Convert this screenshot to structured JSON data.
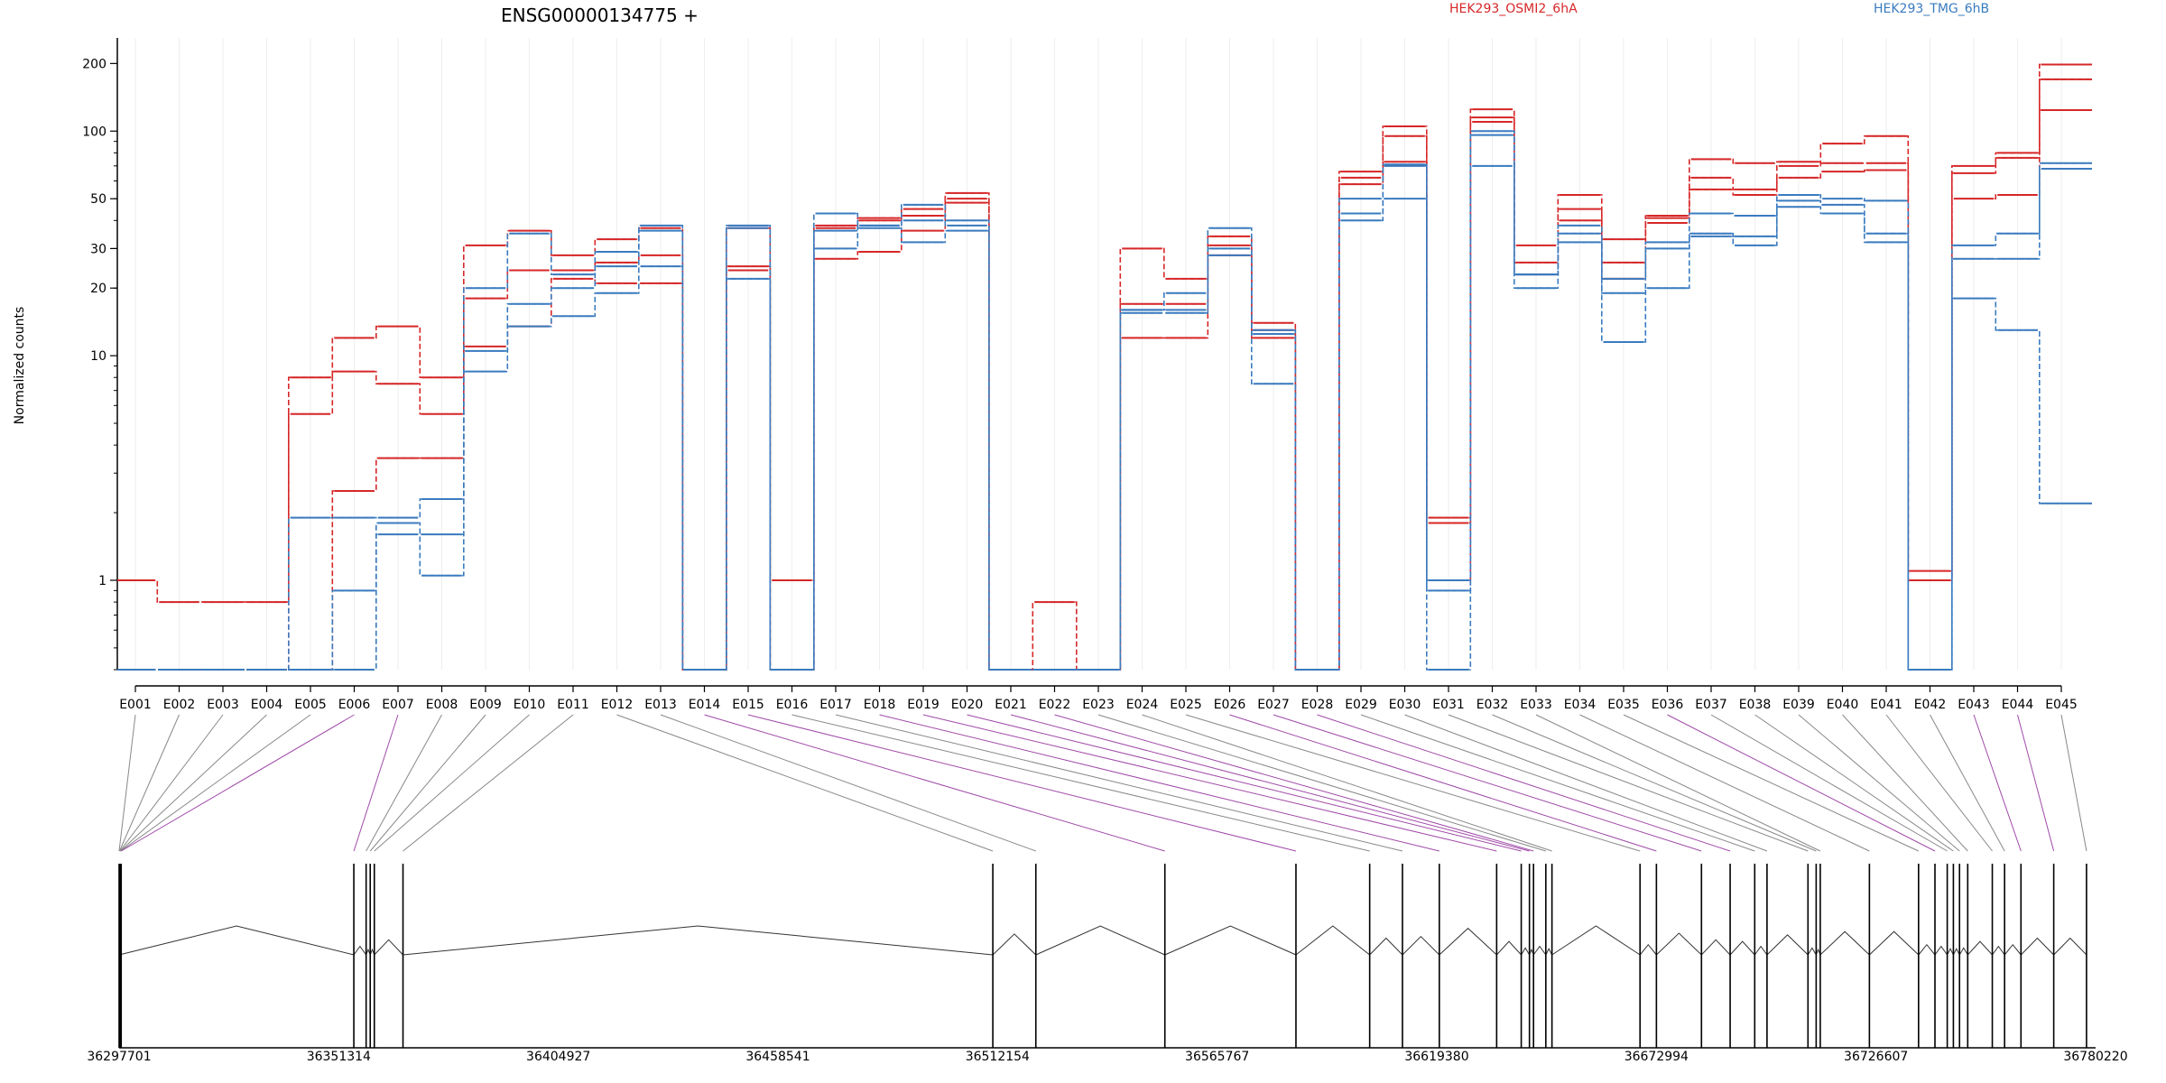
{
  "chart_data": {
    "type": "line",
    "title": "ENSG00000134775 +",
    "ylabel": "Normalized counts",
    "yscale": "log",
    "ylim": [
      0.4,
      260
    ],
    "yticks": [
      1,
      10,
      20,
      30,
      50,
      100,
      200
    ],
    "zero_value": 0.4,
    "colors": {
      "HEK293_OSMI2_6hA": "#d62728",
      "HEK293_TMG_6hB": "#3a7bbf",
      "exon_link": "#888888",
      "exon_link_highlight": "#a04aa8"
    },
    "legend": [
      "HEK293_OSMI2_6hA",
      "HEK293_TMG_6hB"
    ],
    "categories": [
      "E001",
      "E002",
      "E003",
      "E004",
      "E005",
      "E006",
      "E007",
      "E008",
      "E009",
      "E010",
      "E011",
      "E012",
      "E013",
      "E014",
      "E015",
      "E016",
      "E017",
      "E018",
      "E019",
      "E020",
      "E021",
      "E022",
      "E023",
      "E024",
      "E025",
      "E026",
      "E027",
      "E028",
      "E029",
      "E030",
      "E031",
      "E032",
      "E033",
      "E034",
      "E035",
      "E036",
      "E037",
      "E038",
      "E039",
      "E040",
      "E041",
      "E042",
      "E043",
      "E044",
      "E045"
    ],
    "series": [
      {
        "name": "HEK293_OSMI2_6hA",
        "values": [
          1.0,
          0.8,
          0.8,
          0.8,
          8.0,
          12.0,
          13.5,
          8.0,
          31,
          36,
          28,
          33,
          37,
          0.4,
          37,
          1.0,
          38,
          41,
          45,
          53,
          0.4,
          0.8,
          0.4,
          30,
          22,
          34,
          14,
          0.4,
          66,
          105,
          1.9,
          125,
          31,
          52,
          33,
          42,
          75,
          72,
          73,
          88,
          95,
          1.1,
          70,
          80,
          198
        ]
      },
      {
        "name": "HEK293_OSMI2_6hA",
        "values": [
          0.4,
          0.4,
          0.4,
          0.4,
          5.5,
          8.5,
          7.5,
          5.5,
          18,
          24,
          24,
          26,
          28,
          0.4,
          24,
          0.4,
          27,
          29,
          36,
          50,
          0.4,
          0.4,
          0.4,
          17,
          17,
          31,
          13,
          0.4,
          58,
          95,
          1.8,
          115,
          26,
          45,
          26,
          41,
          62,
          55,
          70,
          72,
          72,
          1.0,
          65,
          76,
          170
        ]
      },
      {
        "name": "HEK293_OSMI2_6hA",
        "values": [
          0.4,
          0.4,
          0.4,
          0.4,
          0.4,
          2.5,
          3.5,
          3.5,
          11,
          13.5,
          22,
          21,
          21,
          0.4,
          25,
          0.4,
          37,
          40,
          42,
          48,
          0.4,
          0.4,
          0.4,
          12,
          12,
          28,
          12,
          0.4,
          62,
          73,
          1.0,
          110,
          23,
          40,
          22,
          39,
          55,
          52,
          62,
          66,
          67,
          1.0,
          50,
          52,
          124
        ]
      },
      {
        "name": "HEK293_TMG_6hB",
        "values": [
          0.4,
          0.4,
          0.4,
          0.4,
          1.9,
          1.9,
          1.9,
          2.3,
          20,
          35,
          23,
          29,
          36,
          0.4,
          37,
          0.4,
          43,
          38,
          47,
          40,
          0.4,
          0.4,
          0.4,
          16,
          16,
          37,
          13,
          0.4,
          50,
          70,
          1.0,
          100,
          23,
          38,
          22,
          32,
          43,
          42,
          52,
          50,
          49,
          0.4,
          31,
          35,
          72
        ]
      },
      {
        "name": "HEK293_TMG_6hB",
        "values": [
          0.4,
          0.4,
          0.4,
          0.4,
          0.4,
          0.9,
          1.6,
          1.6,
          10.5,
          17,
          20,
          25,
          38,
          0.4,
          38,
          0.4,
          30,
          38,
          40,
          38,
          0.4,
          0.4,
          0.4,
          16,
          19,
          30,
          12.5,
          0.4,
          43,
          71,
          0.9,
          96,
          23,
          35,
          19,
          30,
          34,
          34,
          49,
          47,
          35,
          0.4,
          27,
          27,
          68
        ]
      },
      {
        "name": "HEK293_TMG_6hB",
        "values": [
          0.4,
          0.4,
          0.4,
          0.4,
          0.4,
          0.4,
          1.8,
          1.05,
          8.5,
          13.5,
          15,
          19,
          25,
          0.4,
          22,
          0.4,
          36,
          37,
          32,
          36,
          0.4,
          0.4,
          0.4,
          15.5,
          15.5,
          28,
          7.5,
          0.4,
          40,
          50,
          0.4,
          70,
          20,
          32,
          11.5,
          20,
          35,
          31,
          46,
          43,
          32,
          0.4,
          18,
          13,
          2.2
        ]
      }
    ],
    "genomic_axis": {
      "tick_labels": [
        "36297701",
        "36351314",
        "36404927",
        "36458541",
        "36512154",
        "36565767",
        "36619380",
        "36672994",
        "36726607",
        "36780220"
      ],
      "range": [
        36297701,
        36780220
      ]
    },
    "exon_starts": [
      36297701,
      36297800,
      36297900,
      36298000,
      36298100,
      36298200,
      36355000,
      36358000,
      36359000,
      36360000,
      36367000,
      36511000,
      36521500,
      36553000,
      36585000,
      36603000,
      36611000,
      36620000,
      36634000,
      36640000,
      36642000,
      36643000,
      36646000,
      36647500,
      36669000,
      36673000,
      36684000,
      36691000,
      36697000,
      36700000,
      36710000,
      36712000,
      36713000,
      36725000,
      36737000,
      36741000,
      36744000,
      36745500,
      36747000,
      36749000,
      36755000,
      36758000,
      36762000,
      36770000,
      36778000
    ],
    "highlight_links": [
      "E006",
      "E007",
      "E014",
      "E015",
      "E018",
      "E019",
      "E020",
      "E021",
      "E022",
      "E026",
      "E027",
      "E028",
      "E036",
      "E043",
      "E044"
    ]
  }
}
